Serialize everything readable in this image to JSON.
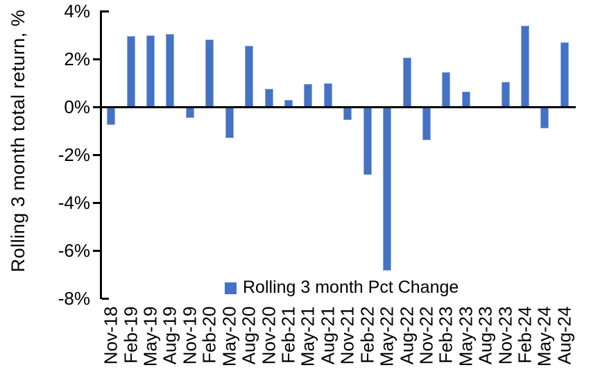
{
  "chart_data": {
    "type": "bar",
    "title": "",
    "ylabel": "Rolling 3 month total return, %",
    "xlabel": "",
    "categories": [
      "Nov-18",
      "Feb-19",
      "May-19",
      "Aug-19",
      "Nov-19",
      "Feb-20",
      "May-20",
      "Aug-20",
      "Nov-20",
      "Feb-21",
      "May-21",
      "Aug-21",
      "Nov-21",
      "Feb-22",
      "May-22",
      "Aug-22",
      "Nov-22",
      "Feb-23",
      "May-23",
      "Aug-23",
      "Nov-23",
      "Feb-24",
      "May-24",
      "Aug-24"
    ],
    "series": [
      {
        "name": "Rolling 3 month Pct Change",
        "values": [
          -0.75,
          2.95,
          3.0,
          3.05,
          -0.45,
          2.8,
          -1.3,
          2.55,
          0.75,
          0.3,
          0.95,
          1.0,
          -0.55,
          -2.85,
          -6.85,
          2.05,
          -1.4,
          1.45,
          0.65,
          0.0,
          1.05,
          3.4,
          -0.9,
          2.7
        ]
      }
    ],
    "ylim": [
      -8,
      4
    ],
    "y_ticks": [
      4,
      2,
      0,
      -2,
      -4,
      -6,
      -8
    ],
    "y_tick_labels": [
      "4%",
      "2%",
      "0%",
      "-2%",
      "-4%",
      "-6%",
      "-8%"
    ],
    "grid": false,
    "legend": {
      "label": "Rolling 3 month Pct Change",
      "position": "bottom-center-inside",
      "swatch": "square"
    },
    "colors": {
      "bar": "#4472C4",
      "bar_edge": "#8FAADC",
      "axis": "#000000",
      "text": "#000000",
      "background": "#FFFFFF"
    }
  }
}
